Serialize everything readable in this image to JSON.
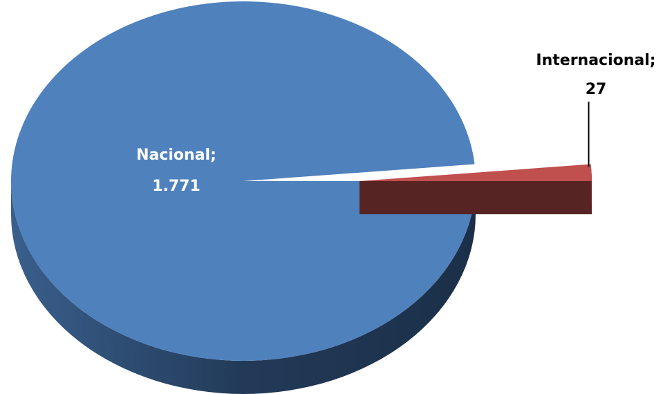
{
  "chart_data": {
    "type": "pie",
    "categories": [
      "Nacional;",
      "Internacional;"
    ],
    "values": [
      1771,
      27
    ],
    "value_labels": [
      "1.771",
      "27"
    ],
    "colors": [
      "#4f81bd",
      "#c0504d"
    ],
    "label_colors": [
      "#ffffff",
      "#000000"
    ]
  }
}
